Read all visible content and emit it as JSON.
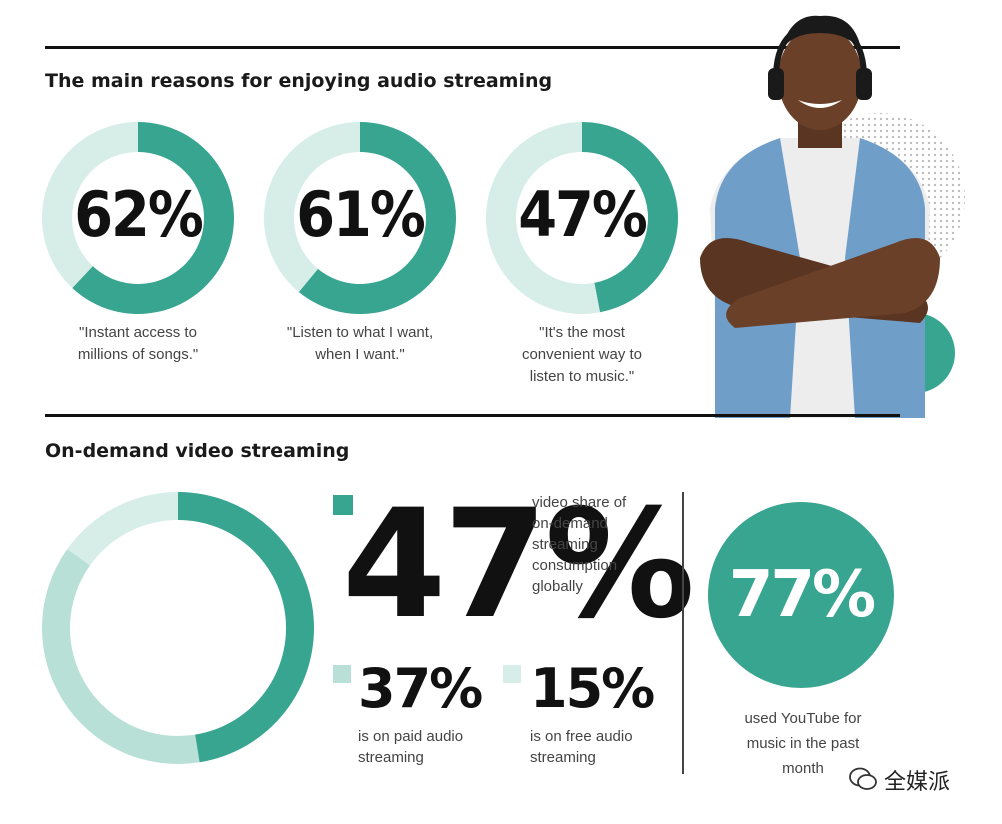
{
  "colors": {
    "teal": "#37a58f",
    "light_teal": "#d6ede8",
    "mid_light_teal": "#b8e0d6",
    "dark": "#111111"
  },
  "section1": {
    "title": "The main reasons for enjoying audio streaming",
    "items": [
      {
        "value_label": "62%",
        "caption": "\"Instant access to\nmillions of songs.\""
      },
      {
        "value_label": "61%",
        "caption": "\"Listen to what I want,\nwhen I want.\""
      },
      {
        "value_label": "47%",
        "caption": "\"It's the most\nconvenient way to\nlisten to music.\""
      }
    ]
  },
  "section2": {
    "title": "On-demand video streaming",
    "main_stat": {
      "value_label": "47%",
      "text": "video share of\non-demand\nstreaming\nconsumption\nglobally"
    },
    "paid_stat": {
      "value_label": "37%",
      "text": "is on paid audio\nstreaming"
    },
    "free_stat": {
      "value_label": "15%",
      "text": "is on free audio\nstreaming"
    },
    "youtube_stat": {
      "value_label": "77%",
      "text": "used YouTube for\nmusic in the past\nmonth"
    }
  },
  "watermark": "全媒派",
  "chart_data": [
    {
      "type": "pie",
      "title": "The main reasons for enjoying audio streaming",
      "categories": [
        "Instant access to millions of songs.",
        "rest"
      ],
      "values": [
        62,
        38
      ]
    },
    {
      "type": "pie",
      "title": "The main reasons for enjoying audio streaming",
      "categories": [
        "Listen to what I want, when I want.",
        "rest"
      ],
      "values": [
        61,
        39
      ]
    },
    {
      "type": "pie",
      "title": "The main reasons for enjoying audio streaming",
      "categories": [
        "It's the most convenient way to listen to music.",
        "rest"
      ],
      "values": [
        47,
        53
      ]
    },
    {
      "type": "pie",
      "title": "On-demand video streaming",
      "categories": [
        "video share of on-demand streaming consumption globally",
        "is on paid audio streaming",
        "is on free audio streaming"
      ],
      "values": [
        47,
        37,
        15
      ]
    }
  ]
}
